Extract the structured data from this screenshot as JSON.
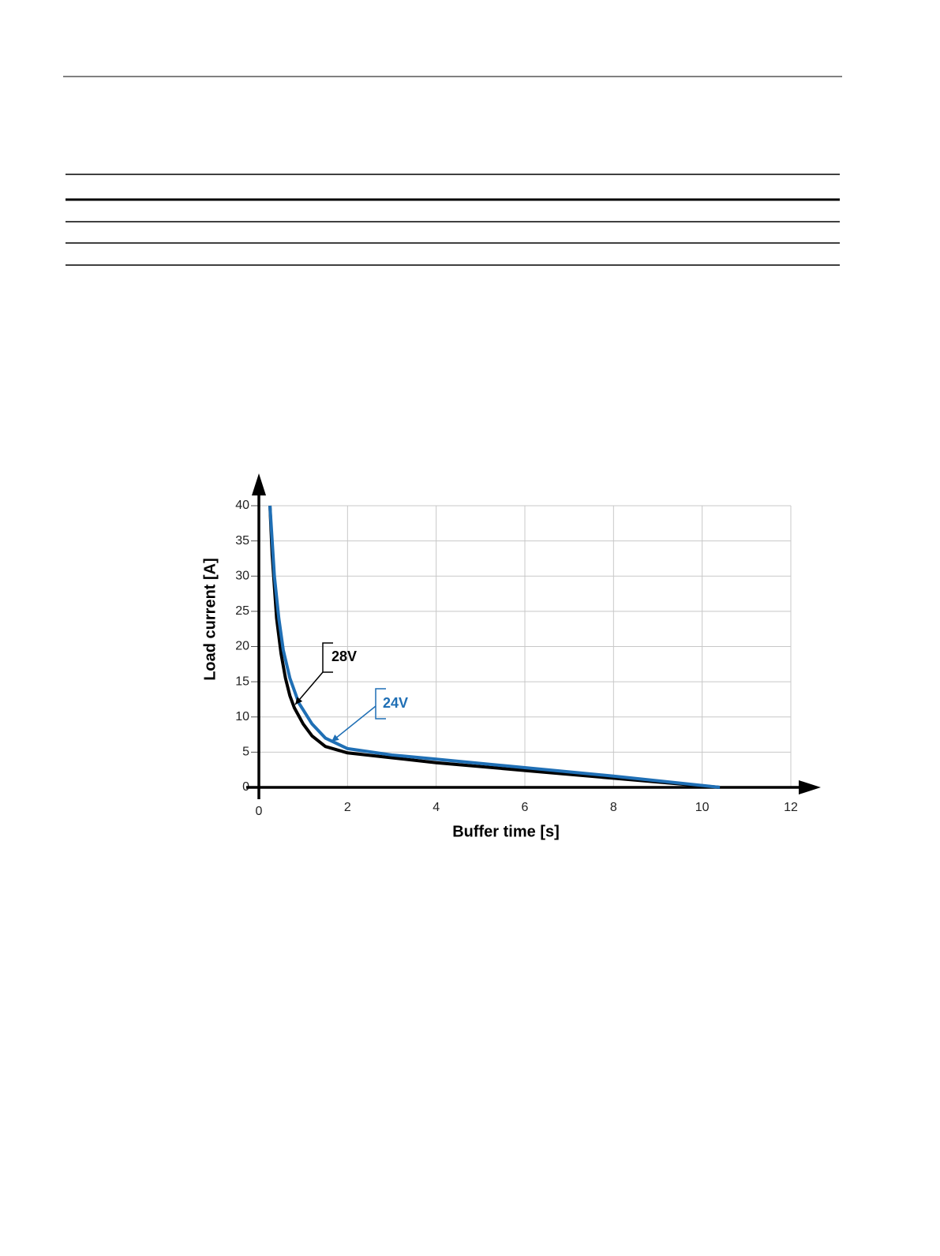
{
  "chart_data": {
    "type": "line",
    "xlabel": "Buffer time [s]",
    "ylabel": "Load current [A]",
    "xlim": [
      0,
      12
    ],
    "ylim": [
      0,
      40
    ],
    "xticks": [
      0,
      2,
      4,
      6,
      8,
      10,
      12
    ],
    "yticks": [
      0,
      5,
      10,
      15,
      20,
      25,
      30,
      35,
      40
    ],
    "grid": true,
    "series": [
      {
        "name": "28V",
        "color": "#000000",
        "x": [
          0.25,
          0.3,
          0.4,
          0.5,
          0.6,
          0.7,
          0.8,
          1.0,
          1.2,
          1.5,
          2,
          3,
          4,
          6,
          8,
          10.4
        ],
        "values": [
          40,
          33,
          24,
          19,
          15.5,
          13,
          11.3,
          9,
          7.3,
          5.8,
          4.9,
          4.2,
          3.5,
          2.4,
          1.3,
          0
        ]
      },
      {
        "name": "24V",
        "color": "#1f6fb5",
        "x": [
          0.25,
          0.35,
          0.45,
          0.55,
          0.7,
          0.9,
          1.2,
          1.5,
          2,
          3,
          4,
          6,
          8,
          10.4
        ],
        "values": [
          40,
          30,
          24,
          19.5,
          15.5,
          12,
          9,
          7,
          5.5,
          4.6,
          4,
          2.8,
          1.6,
          0
        ]
      }
    ]
  }
}
